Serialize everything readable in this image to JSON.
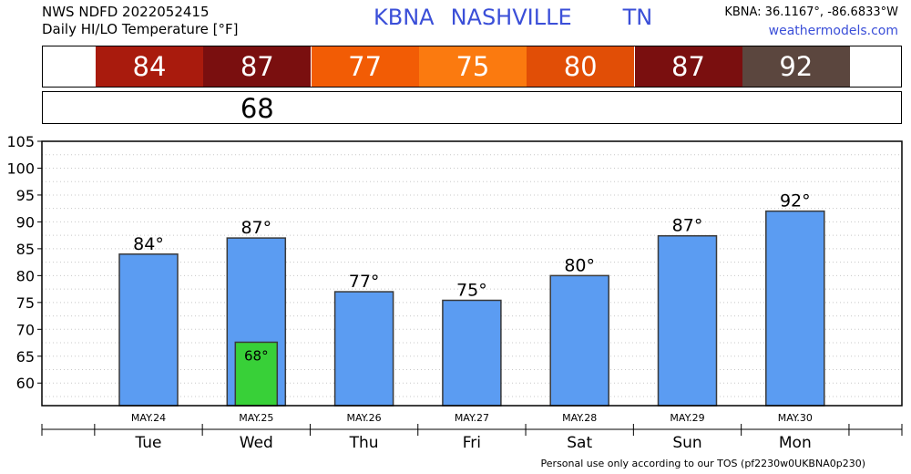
{
  "header": {
    "line1": "NWS NDFD 2022052415",
    "line2": "Daily HI/LO Temperature [°F]",
    "station": "KBNA",
    "city": "NASHVILLE",
    "state": "TN",
    "coords": "KBNA: 36.1167°, -86.6833°W",
    "site": "weathermodels.com"
  },
  "hi_strip": [
    {
      "label": "84",
      "color": "#a91b0d"
    },
    {
      "label": "87",
      "color": "#7a0f0f"
    },
    {
      "label": "77",
      "color": "#f25c05"
    },
    {
      "label": "75",
      "color": "#fb7a0f"
    },
    {
      "label": "80",
      "color": "#e14e06"
    },
    {
      "label": "87",
      "color": "#7a0f0f"
    },
    {
      "label": "92",
      "color": "#5b463e"
    }
  ],
  "lo_strip": [
    {
      "day_index": 1,
      "label": "68"
    }
  ],
  "chart_data": {
    "type": "bar",
    "categories": [
      "Tue",
      "Wed",
      "Thu",
      "Fri",
      "Sat",
      "Sun",
      "Mon"
    ],
    "dates": [
      "MAY.24",
      "MAY.25",
      "MAY.26",
      "MAY.27",
      "MAY.28",
      "MAY.29",
      "MAY.30"
    ],
    "series": [
      {
        "values": [
          84,
          87,
          77,
          75.4,
          80,
          87.4,
          92
        ],
        "color": "#5b9cf2"
      },
      {
        "values": [
          null,
          67.6,
          null,
          null,
          null,
          null,
          null
        ],
        "color": "#38d038"
      }
    ],
    "hi_labels": [
      "84°",
      "87°",
      "77°",
      "75°",
      "80°",
      "87°",
      "92°"
    ],
    "lo_labels": [
      null,
      "68°",
      null,
      null,
      null,
      null,
      null
    ],
    "yticks": [
      60,
      65,
      70,
      75,
      80,
      85,
      90,
      95,
      100,
      105
    ],
    "ylim": [
      55.8,
      105
    ],
    "grid": true
  },
  "footer": "Personal use only according to our TOS (pf2230w0UKBNA0p230)"
}
